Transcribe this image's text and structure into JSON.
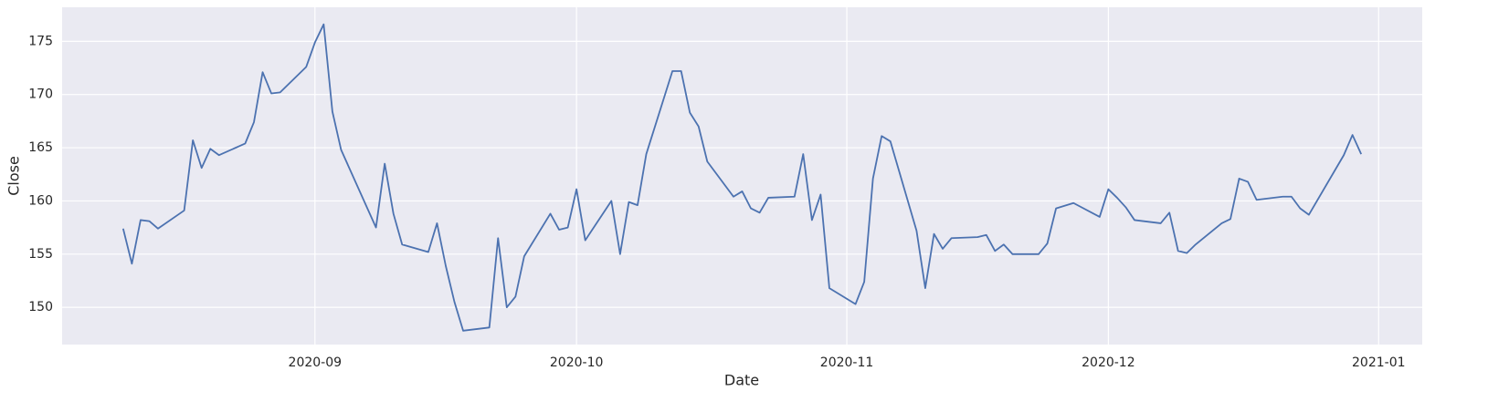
{
  "chart_data": {
    "type": "line",
    "x_label": "Date",
    "y_label": "Close",
    "x": [
      "2020-08-10",
      "2020-08-11",
      "2020-08-12",
      "2020-08-13",
      "2020-08-14",
      "2020-08-17",
      "2020-08-18",
      "2020-08-19",
      "2020-08-20",
      "2020-08-21",
      "2020-08-24",
      "2020-08-25",
      "2020-08-26",
      "2020-08-27",
      "2020-08-28",
      "2020-08-31",
      "2020-09-01",
      "2020-09-02",
      "2020-09-03",
      "2020-09-04",
      "2020-09-08",
      "2020-09-09",
      "2020-09-10",
      "2020-09-11",
      "2020-09-14",
      "2020-09-15",
      "2020-09-16",
      "2020-09-17",
      "2020-09-18",
      "2020-09-21",
      "2020-09-22",
      "2020-09-23",
      "2020-09-24",
      "2020-09-25",
      "2020-09-28",
      "2020-09-29",
      "2020-09-30",
      "2020-10-01",
      "2020-10-02",
      "2020-10-05",
      "2020-10-06",
      "2020-10-07",
      "2020-10-08",
      "2020-10-09",
      "2020-10-12",
      "2020-10-13",
      "2020-10-14",
      "2020-10-15",
      "2020-10-16",
      "2020-10-19",
      "2020-10-20",
      "2020-10-21",
      "2020-10-22",
      "2020-10-23",
      "2020-10-26",
      "2020-10-27",
      "2020-10-28",
      "2020-10-29",
      "2020-10-30",
      "2020-11-02",
      "2020-11-03",
      "2020-11-04",
      "2020-11-05",
      "2020-11-06",
      "2020-11-09",
      "2020-11-10",
      "2020-11-11",
      "2020-11-12",
      "2020-11-13",
      "2020-11-16",
      "2020-11-17",
      "2020-11-18",
      "2020-11-19",
      "2020-11-20",
      "2020-11-23",
      "2020-11-24",
      "2020-11-25",
      "2020-11-27",
      "2020-11-30",
      "2020-12-01",
      "2020-12-02",
      "2020-12-03",
      "2020-12-04",
      "2020-12-07",
      "2020-12-08",
      "2020-12-09",
      "2020-12-10",
      "2020-12-11",
      "2020-12-14",
      "2020-12-15",
      "2020-12-16",
      "2020-12-17",
      "2020-12-18",
      "2020-12-21",
      "2020-12-22",
      "2020-12-23",
      "2020-12-24",
      "2020-12-28",
      "2020-12-29",
      "2020-12-30"
    ],
    "series": [
      {
        "color": "#4c72b0",
        "values": [
          157.4,
          154.1,
          158.2,
          158.1,
          157.4,
          159.1,
          165.7,
          163.1,
          164.9,
          164.3,
          165.4,
          167.4,
          172.1,
          170.1,
          170.2,
          172.6,
          174.9,
          176.6,
          168.4,
          164.8,
          157.5,
          163.5,
          158.8,
          155.9,
          155.2,
          157.9,
          153.9,
          150.5,
          147.8,
          148.1,
          156.5,
          150.0,
          151.0,
          154.8,
          158.8,
          157.3,
          157.5,
          161.1,
          156.3,
          160.0,
          155.0,
          159.9,
          159.6,
          164.4,
          172.2,
          172.2,
          168.3,
          167.0,
          163.7,
          160.4,
          160.9,
          159.3,
          158.9,
          160.3,
          160.4,
          164.4,
          158.2,
          160.6,
          151.8,
          150.3,
          152.4,
          162.1,
          166.1,
          165.6,
          157.2,
          151.8,
          156.9,
          155.5,
          156.5,
          156.6,
          156.8,
          155.3,
          155.9,
          155.0,
          155.0,
          156.0,
          159.3,
          159.8,
          158.5,
          161.1,
          160.3,
          159.4,
          158.2,
          157.9,
          158.9,
          155.3,
          155.1,
          155.9,
          157.9,
          158.3,
          162.1,
          161.8,
          160.1,
          160.4,
          160.4,
          159.3,
          158.7,
          164.3,
          166.2,
          164.4
        ]
      }
    ],
    "xlim": [
      "2020-08-03",
      "2021-01-06"
    ],
    "xticks": [
      {
        "value": "2020-09-01",
        "label": "2020-09"
      },
      {
        "value": "2020-10-01",
        "label": "2020-10"
      },
      {
        "value": "2020-11-01",
        "label": "2020-11"
      },
      {
        "value": "2020-12-01",
        "label": "2020-12"
      },
      {
        "value": "2021-01-01",
        "label": "2021-01"
      }
    ],
    "ylim": [
      146.5,
      178.2
    ],
    "yticks": [
      150,
      155,
      160,
      165,
      170,
      175
    ],
    "grid": true
  }
}
